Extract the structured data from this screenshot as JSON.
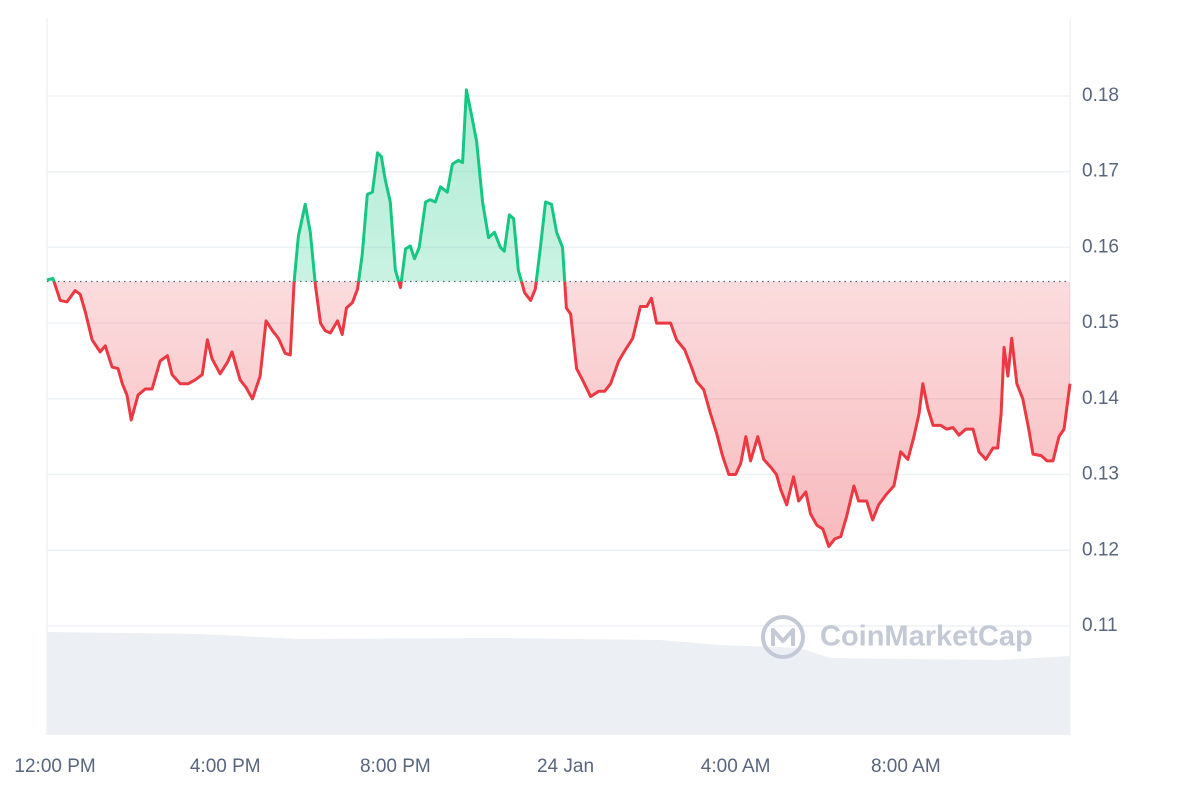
{
  "chart_data": {
    "type": "line",
    "watermark": "CoinMarketCap",
    "xlim": [
      -0.19,
      23.86
    ],
    "xticks": [
      {
        "value": 0,
        "label": "12:00 PM"
      },
      {
        "value": 4,
        "label": "4:00 PM"
      },
      {
        "value": 8,
        "label": "8:00 PM"
      },
      {
        "value": 12,
        "label": "24 Jan"
      },
      {
        "value": 16,
        "label": "4:00 AM"
      },
      {
        "value": 20,
        "label": "8:00 AM"
      }
    ],
    "ylim": [
      0.0956,
      0.1903
    ],
    "yticks": [
      0.11,
      0.12,
      0.13,
      0.14,
      0.15,
      0.16,
      0.17,
      0.18
    ],
    "grid": true,
    "baseline": 0.1555,
    "up_color": "#16c784",
    "down_color": "#ea3943",
    "x": [
      -0.19,
      -0.05,
      0.12,
      0.28,
      0.47,
      0.59,
      0.71,
      0.87,
      1.06,
      1.18,
      1.34,
      1.48,
      1.58,
      1.69,
      1.79,
      1.95,
      2.12,
      2.28,
      2.47,
      2.64,
      2.75,
      2.94,
      3.13,
      3.29,
      3.46,
      3.58,
      3.69,
      3.88,
      4.05,
      4.16,
      4.35,
      4.49,
      4.64,
      4.82,
      4.96,
      5.11,
      5.25,
      5.41,
      5.53,
      5.62,
      5.72,
      5.88,
      6.0,
      6.12,
      6.24,
      6.35,
      6.47,
      6.64,
      6.75,
      6.85,
      6.99,
      7.11,
      7.22,
      7.34,
      7.46,
      7.58,
      7.67,
      7.76,
      7.88,
      8.0,
      8.12,
      8.24,
      8.35,
      8.45,
      8.56,
      8.71,
      8.82,
      8.94,
      9.06,
      9.22,
      9.34,
      9.48,
      9.58,
      9.67,
      9.79,
      9.91,
      10.05,
      10.19,
      10.33,
      10.47,
      10.56,
      10.68,
      10.78,
      10.89,
      11.04,
      11.18,
      11.29,
      11.41,
      11.53,
      11.67,
      11.79,
      11.93,
      12.02,
      12.12,
      12.26,
      12.4,
      12.59,
      12.78,
      12.92,
      13.06,
      13.25,
      13.41,
      13.58,
      13.76,
      13.91,
      14.02,
      14.14,
      14.33,
      14.47,
      14.61,
      14.8,
      14.94,
      15.08,
      15.25,
      15.41,
      15.55,
      15.69,
      15.84,
      16.0,
      16.12,
      16.24,
      16.35,
      16.52,
      16.66,
      16.82,
      16.96,
      17.06,
      17.2,
      17.36,
      17.48,
      17.65,
      17.76,
      17.91,
      18.05,
      18.19,
      18.33,
      18.47,
      18.61,
      18.78,
      18.89,
      19.08,
      19.22,
      19.36,
      19.53,
      19.72,
      19.88,
      20.05,
      20.19,
      20.31,
      20.4,
      20.52,
      20.64,
      20.82,
      20.96,
      21.11,
      21.25,
      21.41,
      21.58,
      21.72,
      21.88,
      22.05,
      22.16,
      22.24,
      22.31,
      22.4,
      22.49,
      22.61,
      22.75,
      22.89,
      22.99,
      23.18,
      23.32,
      23.46,
      23.6,
      23.72,
      23.86
    ],
    "values": [
      0.1557,
      0.1559,
      0.153,
      0.1528,
      0.1543,
      0.1538,
      0.1515,
      0.1478,
      0.1462,
      0.147,
      0.1442,
      0.144,
      0.142,
      0.1405,
      0.1372,
      0.1405,
      0.1413,
      0.1413,
      0.145,
      0.1457,
      0.1432,
      0.142,
      0.142,
      0.1425,
      0.1432,
      0.1478,
      0.1453,
      0.1433,
      0.1448,
      0.1462,
      0.1425,
      0.1415,
      0.14,
      0.143,
      0.1503,
      0.149,
      0.148,
      0.146,
      0.1458,
      0.1555,
      0.1615,
      0.1657,
      0.162,
      0.155,
      0.15,
      0.149,
      0.1487,
      0.1503,
      0.1485,
      0.152,
      0.1527,
      0.1545,
      0.159,
      0.167,
      0.1673,
      0.1725,
      0.172,
      0.169,
      0.166,
      0.157,
      0.1547,
      0.1598,
      0.1602,
      0.1585,
      0.16,
      0.166,
      0.1663,
      0.166,
      0.168,
      0.1673,
      0.171,
      0.1715,
      0.1712,
      0.1808,
      0.1775,
      0.174,
      0.166,
      0.1613,
      0.162,
      0.16,
      0.1595,
      0.1643,
      0.1638,
      0.157,
      0.154,
      0.153,
      0.1545,
      0.16,
      0.166,
      0.1657,
      0.162,
      0.16,
      0.152,
      0.1512,
      0.144,
      0.1425,
      0.1403,
      0.141,
      0.141,
      0.142,
      0.145,
      0.1465,
      0.148,
      0.1522,
      0.1522,
      0.1533,
      0.15,
      0.15,
      0.15,
      0.1478,
      0.1465,
      0.1445,
      0.1423,
      0.1412,
      0.138,
      0.1355,
      0.1325,
      0.13,
      0.13,
      0.1315,
      0.135,
      0.1318,
      0.135,
      0.132,
      0.131,
      0.13,
      0.128,
      0.126,
      0.1297,
      0.1265,
      0.1277,
      0.1248,
      0.1233,
      0.1228,
      0.1205,
      0.1215,
      0.1218,
      0.1245,
      0.1285,
      0.1265,
      0.1265,
      0.124,
      0.126,
      0.1273,
      0.1285,
      0.133,
      0.132,
      0.135,
      0.138,
      0.142,
      0.1387,
      0.1365,
      0.1365,
      0.136,
      0.1362,
      0.1352,
      0.136,
      0.136,
      0.133,
      0.132,
      0.1335,
      0.1335,
      0.138,
      0.1468,
      0.143,
      0.148,
      0.142,
      0.14,
      0.136,
      0.1327,
      0.1325,
      0.1318,
      0.1318,
      0.135,
      0.136,
      0.142
    ]
  }
}
